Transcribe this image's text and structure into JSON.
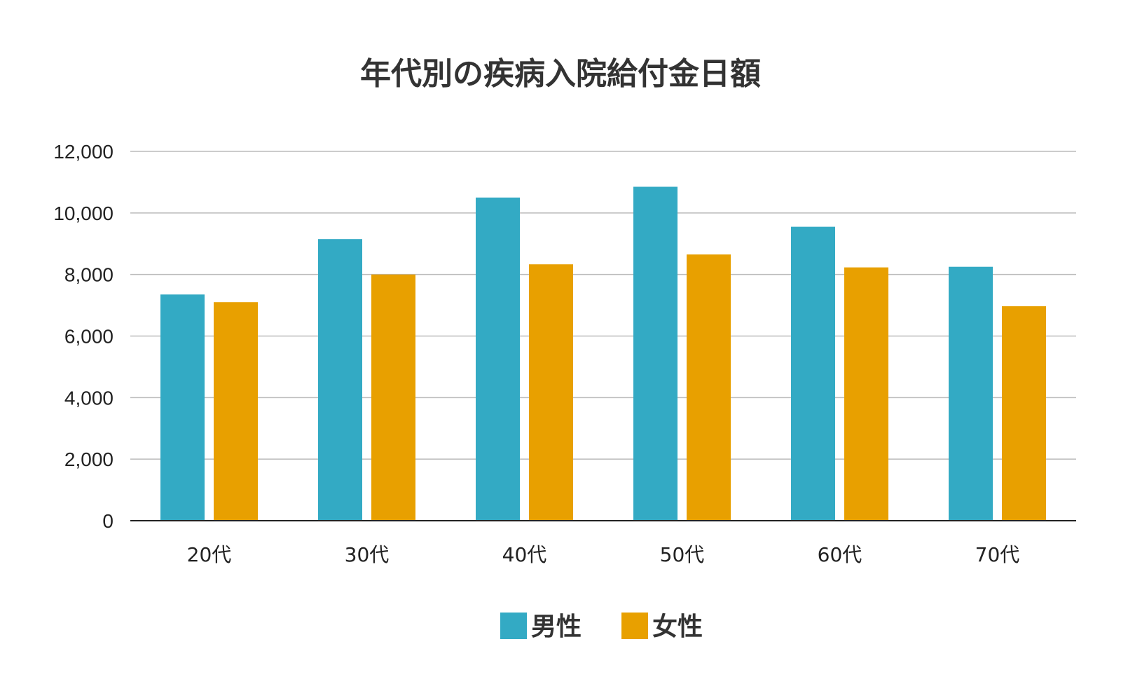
{
  "chart_data": {
    "type": "bar",
    "title": "年代別の疾病入院給付金日額",
    "categories": [
      "20代",
      "30代",
      "40代",
      "50代",
      "60代",
      "70代"
    ],
    "series": [
      {
        "name": "男性",
        "color": "#33aac4",
        "values": [
          7350,
          9150,
          10500,
          10850,
          9550,
          8250
        ]
      },
      {
        "name": "女性",
        "color": "#e8a000",
        "values": [
          7100,
          8000,
          8330,
          8650,
          8230,
          6970
        ]
      }
    ],
    "ylim": [
      0,
      12000
    ],
    "y_ticks": [
      0,
      2000,
      4000,
      6000,
      8000,
      10000,
      12000
    ],
    "y_tick_labels": [
      "0",
      "2,000",
      "4,000",
      "6,000",
      "8,000",
      "10,000",
      "12,000"
    ],
    "grid": true,
    "legend_position": "bottom"
  }
}
